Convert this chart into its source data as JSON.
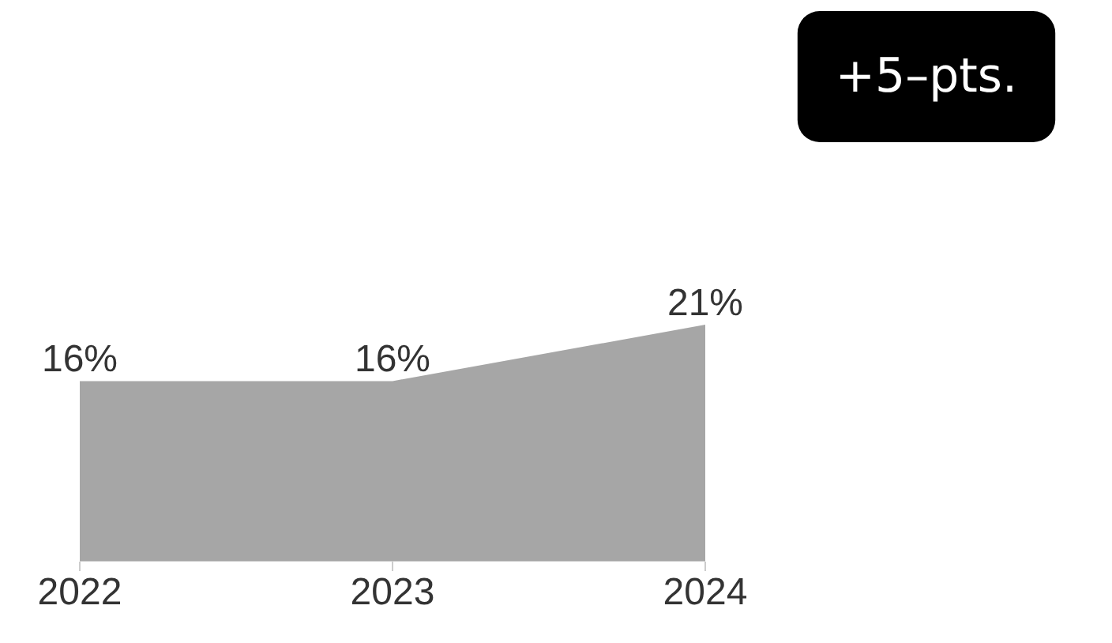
{
  "chart_data": {
    "type": "area",
    "categories": [
      "2022",
      "2023",
      "2024"
    ],
    "series": [
      {
        "color": "#a6a6a6",
        "values": [
          16,
          16,
          21
        ],
        "value_labels": [
          "16%",
          "16%",
          "21%"
        ]
      }
    ],
    "annotations": [
      "+5–pts."
    ]
  }
}
